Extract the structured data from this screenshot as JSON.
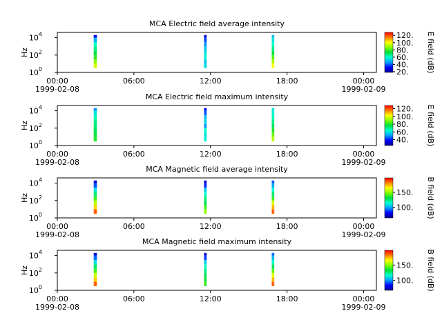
{
  "chart_data": [
    {
      "type": "spectrogram",
      "title": "MCA  Electric field average intensity",
      "ylabel": "Hz",
      "log_y": true,
      "ylim": [
        1,
        40000
      ],
      "yticks": [
        {
          "value": 1,
          "label": "10",
          "exponent": "0"
        },
        {
          "value": 100,
          "label": "10",
          "exponent": "2"
        },
        {
          "value": 10000,
          "label": "10",
          "exponent": "4"
        }
      ],
      "xlim": [
        0,
        25
      ],
      "xticks": [
        {
          "value": 0,
          "label": "00:00"
        },
        {
          "value": 6,
          "label": "06:00"
        },
        {
          "value": 12,
          "label": "12:00"
        },
        {
          "value": 18,
          "label": "18:00"
        },
        {
          "value": 24,
          "label": "00:00"
        }
      ],
      "date_labels": [
        {
          "value": 0,
          "label": "1999-02-08"
        },
        {
          "value": 24,
          "label": "1999-02-09"
        }
      ],
      "clabel": "E field (dB)",
      "clim": [
        18,
        128
      ],
      "cticks": [
        {
          "value": 20,
          "label": "20."
        },
        {
          "value": 40,
          "label": "40."
        },
        {
          "value": 60,
          "label": "60."
        },
        {
          "value": 80,
          "label": "80."
        },
        {
          "value": 100,
          "label": "100."
        },
        {
          "value": 120,
          "label": "120."
        }
      ],
      "colormap": [
        "#00008f",
        "#0000ff",
        "#00a0ff",
        "#00ffd0",
        "#00e040",
        "#80ff00",
        "#ffff00",
        "#ff8000",
        "#ff0000"
      ],
      "freq_bins": [
        3,
        10,
        30,
        100,
        300,
        1000,
        3000,
        10000,
        20000
      ],
      "strips": [
        {
          "time": [
            2.85,
            3.1
          ],
          "values": [
            95,
            88,
            78,
            72,
            66,
            60,
            48,
            30
          ]
        },
        {
          "time": [
            11.5,
            11.7
          ],
          "values": [
            55,
            50,
            58,
            55,
            50,
            44,
            38,
            28
          ]
        },
        {
          "time": [
            16.8,
            17.0
          ],
          "values": [
            100,
            92,
            82,
            72,
            66,
            60,
            55,
            50
          ]
        }
      ]
    },
    {
      "type": "spectrogram",
      "title": "MCA  Electric field maximum intensity",
      "ylabel": "Hz",
      "log_y": true,
      "ylim": [
        1,
        40000
      ],
      "yticks": [
        {
          "value": 1,
          "label": "10",
          "exponent": "0"
        },
        {
          "value": 100,
          "label": "10",
          "exponent": "2"
        },
        {
          "value": 10000,
          "label": "10",
          "exponent": "4"
        }
      ],
      "xlim": [
        0,
        25
      ],
      "xticks": [
        {
          "value": 0,
          "label": "00:00"
        },
        {
          "value": 6,
          "label": "06:00"
        },
        {
          "value": 12,
          "label": "12:00"
        },
        {
          "value": 18,
          "label": "18:00"
        },
        {
          "value": 24,
          "label": "00:00"
        }
      ],
      "date_labels": [
        {
          "value": 0,
          "label": "1999-02-08"
        },
        {
          "value": 24,
          "label": "1999-02-09"
        }
      ],
      "clabel": "E field (dB)",
      "clim": [
        25,
        128
      ],
      "cticks": [
        {
          "value": 40,
          "label": "40."
        },
        {
          "value": 60,
          "label": "60."
        },
        {
          "value": 80,
          "label": "80."
        },
        {
          "value": 100,
          "label": "100."
        },
        {
          "value": 120,
          "label": "120."
        }
      ],
      "colormap": [
        "#00008f",
        "#0000ff",
        "#00a0ff",
        "#00ffd0",
        "#00e040",
        "#80ff00",
        "#ffff00",
        "#ff8000",
        "#ff0000"
      ],
      "freq_bins": [
        3,
        10,
        30,
        100,
        300,
        1000,
        3000,
        10000,
        20000
      ],
      "strips": [
        {
          "time": [
            2.85,
            3.1
          ],
          "values": [
            80,
            78,
            74,
            72,
            70,
            66,
            60,
            50
          ]
        },
        {
          "time": [
            11.5,
            11.7
          ],
          "values": [
            62,
            60,
            64,
            50,
            58,
            55,
            45,
            38
          ]
        },
        {
          "time": [
            16.8,
            17.0
          ],
          "values": [
            95,
            88,
            80,
            74,
            70,
            66,
            62,
            60
          ]
        }
      ]
    },
    {
      "type": "spectrogram",
      "title": "MCA  Magnetic field average intensity",
      "ylabel": "Hz",
      "log_y": true,
      "ylim": [
        1,
        40000
      ],
      "yticks": [
        {
          "value": 1,
          "label": "10",
          "exponent": "0"
        },
        {
          "value": 100,
          "label": "10",
          "exponent": "2"
        },
        {
          "value": 10000,
          "label": "10",
          "exponent": "4"
        }
      ],
      "xlim": [
        0,
        25
      ],
      "xticks": [
        {
          "value": 0,
          "label": "00:00"
        },
        {
          "value": 6,
          "label": "06:00"
        },
        {
          "value": 12,
          "label": "12:00"
        },
        {
          "value": 18,
          "label": "18:00"
        },
        {
          "value": 24,
          "label": "00:00"
        }
      ],
      "date_labels": [
        {
          "value": 0,
          "label": "1999-02-08"
        },
        {
          "value": 24,
          "label": "1999-02-09"
        }
      ],
      "clabel": "B field (dB)",
      "clim": [
        65,
        198
      ],
      "cticks": [
        {
          "value": 100,
          "label": "100."
        },
        {
          "value": 150,
          "label": "150."
        }
      ],
      "colormap": [
        "#00008f",
        "#0000ff",
        "#00a0ff",
        "#00ffd0",
        "#00e040",
        "#80ff00",
        "#ffff00",
        "#ff8000",
        "#ff0000"
      ],
      "freq_bins": [
        3,
        10,
        30,
        100,
        300,
        1000,
        3000,
        10000,
        20000
      ],
      "strips": [
        {
          "time": [
            2.85,
            3.1
          ],
          "values": [
            185,
            170,
            155,
            140,
            125,
            110,
            90,
            75
          ]
        },
        {
          "time": [
            11.5,
            11.7
          ],
          "values": [
            150,
            140,
            130,
            125,
            115,
            105,
            85,
            75
          ]
        },
        {
          "time": [
            16.8,
            17.0
          ],
          "values": [
            185,
            175,
            160,
            140,
            125,
            115,
            100,
            90
          ]
        }
      ]
    },
    {
      "type": "spectrogram",
      "title": "MCA  Magnetic field maximum intensity",
      "ylabel": "Hz",
      "log_y": true,
      "ylim": [
        1,
        40000
      ],
      "yticks": [
        {
          "value": 1,
          "label": "10",
          "exponent": "0"
        },
        {
          "value": 100,
          "label": "10",
          "exponent": "2"
        },
        {
          "value": 10000,
          "label": "10",
          "exponent": "4"
        }
      ],
      "xlim": [
        0,
        25
      ],
      "xticks": [
        {
          "value": 0,
          "label": "00:00"
        },
        {
          "value": 6,
          "label": "06:00"
        },
        {
          "value": 12,
          "label": "12:00"
        },
        {
          "value": 18,
          "label": "18:00"
        },
        {
          "value": 24,
          "label": "00:00"
        }
      ],
      "date_labels": [
        {
          "value": 0,
          "label": "1999-02-08"
        },
        {
          "value": 24,
          "label": "1999-02-09"
        }
      ],
      "clabel": "B field (dB)",
      "clim": [
        68,
        198
      ],
      "cticks": [
        {
          "value": 100,
          "label": "100."
        },
        {
          "value": 150,
          "label": "150."
        }
      ],
      "colormap": [
        "#00008f",
        "#0000ff",
        "#00a0ff",
        "#00ffd0",
        "#00e040",
        "#80ff00",
        "#ffff00",
        "#ff8000",
        "#ff0000"
      ],
      "freq_bins": [
        3,
        10,
        30,
        100,
        300,
        1000,
        3000,
        10000,
        20000
      ],
      "strips": [
        {
          "time": [
            2.85,
            3.1
          ],
          "values": [
            185,
            172,
            158,
            142,
            128,
            112,
            95,
            80
          ]
        },
        {
          "time": [
            11.5,
            11.7
          ],
          "values": [
            140,
            135,
            130,
            125,
            118,
            108,
            90,
            78
          ]
        },
        {
          "time": [
            16.8,
            17.0
          ],
          "values": [
            185,
            175,
            162,
            145,
            130,
            118,
            105,
            95
          ]
        }
      ]
    }
  ]
}
